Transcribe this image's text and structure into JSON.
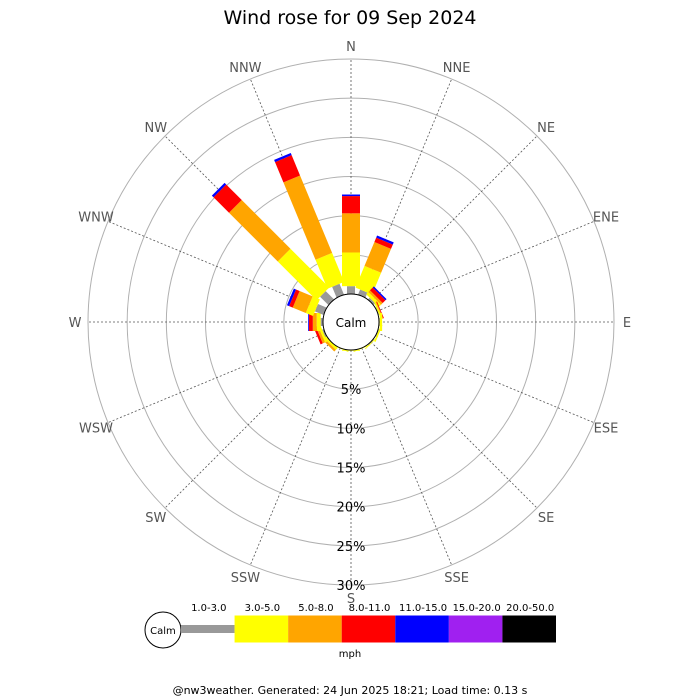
{
  "title": "Wind rose for 09 Sep 2024",
  "footer": "@nw3weather. Generated: 24 Jun 2025 18:21; Load time: 0.13 s",
  "calm_label": "Calm",
  "unit_label": "mph",
  "chart_data": {
    "type": "wind-rose",
    "title": "Wind rose for 09 Sep 2024",
    "directions": [
      "N",
      "NNE",
      "NE",
      "ENE",
      "E",
      "ESE",
      "SE",
      "SSE",
      "S",
      "SSW",
      "SW",
      "WSW",
      "W",
      "WNW",
      "NW",
      "NNW"
    ],
    "rings": [
      5,
      10,
      15,
      20,
      25,
      30
    ],
    "ring_labels": [
      "5%",
      "10%",
      "15%",
      "20%",
      "25%",
      "30%"
    ],
    "rmax": 30,
    "bins": [
      {
        "label": "1.0-3.0",
        "color": "#999999"
      },
      {
        "label": "3.0-5.0",
        "color": "#ffff00"
      },
      {
        "label": "5.0-8.0",
        "color": "#ffa500"
      },
      {
        "label": "8.0-11.0",
        "color": "#ff0000"
      },
      {
        "label": "11.0-15.0",
        "color": "#0000ff"
      },
      {
        "label": "15.0-20.0",
        "color": "#a020f0"
      },
      {
        "label": "20.0-50.0",
        "color": "#000000"
      }
    ],
    "frequencies": [
      {
        "dir": "N",
        "values": [
          1.0,
          4.3,
          5.0,
          2.2,
          0.2,
          0,
          0
        ]
      },
      {
        "dir": "NNE",
        "values": [
          0.7,
          3.0,
          3.3,
          0.6,
          0.3,
          0,
          0
        ]
      },
      {
        "dir": "NE",
        "values": [
          0.3,
          0.4,
          0.3,
          0.5,
          0.2,
          0,
          0
        ]
      },
      {
        "dir": "ENE",
        "values": [
          0.1,
          0.2,
          0.1,
          0.1,
          0,
          0,
          0
        ]
      },
      {
        "dir": "E",
        "values": [
          0.1,
          0.3,
          0,
          0,
          0,
          0,
          0
        ]
      },
      {
        "dir": "ESE",
        "values": [
          0.1,
          0.2,
          0,
          0,
          0,
          0,
          0
        ]
      },
      {
        "dir": "SE",
        "values": [
          0.1,
          0.1,
          0,
          0,
          0,
          0,
          0
        ]
      },
      {
        "dir": "SSE",
        "values": [
          0,
          0.1,
          0,
          0,
          0,
          0,
          0
        ]
      },
      {
        "dir": "S",
        "values": [
          0,
          0.1,
          0,
          0,
          0,
          0,
          0
        ]
      },
      {
        "dir": "SSW",
        "values": [
          0,
          0.1,
          0,
          0,
          0,
          0,
          0
        ]
      },
      {
        "dir": "SW",
        "values": [
          0,
          0.3,
          0.3,
          0,
          0,
          0,
          0
        ]
      },
      {
        "dir": "WSW",
        "values": [
          0.2,
          0.3,
          0.3,
          0.3,
          0,
          0,
          0
        ]
      },
      {
        "dir": "W",
        "values": [
          0.3,
          0.5,
          0.5,
          0.5,
          0.1,
          0,
          0
        ]
      },
      {
        "dir": "WNW",
        "values": [
          1.2,
          1.0,
          1.8,
          0.5,
          0.3,
          0,
          0
        ]
      },
      {
        "dir": "NW",
        "values": [
          1.5,
          7.0,
          8.8,
          2.8,
          0.3,
          0,
          0
        ]
      },
      {
        "dir": "NNW",
        "values": [
          1.5,
          4.0,
          10.7,
          2.8,
          0.3,
          0,
          0
        ]
      }
    ]
  }
}
